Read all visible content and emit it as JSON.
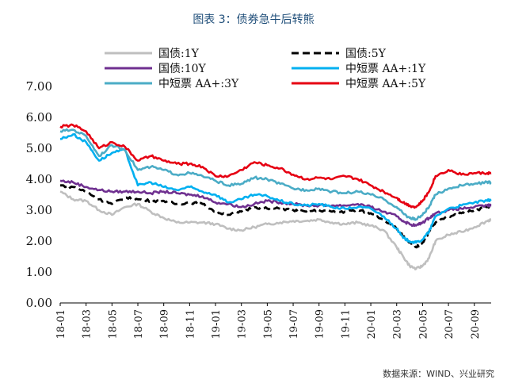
{
  "title": "图表 3：债券急牛后转熊",
  "source": "数据来源：WIND、兴业研究",
  "chart_data": {
    "type": "line",
    "title": "图表 3：债券急牛后转熊",
    "xlabel": "",
    "ylabel": "",
    "ylim": [
      0,
      7
    ],
    "y_ticks": [
      "0.00",
      "1.00",
      "2.00",
      "3.00",
      "4.00",
      "5.00",
      "6.00",
      "7.00"
    ],
    "x_ticks": [
      "18-01",
      "18-03",
      "18-05",
      "18-07",
      "18-09",
      "18-11",
      "19-01",
      "19-03",
      "19-05",
      "19-07",
      "19-09",
      "19-11",
      "20-01",
      "20-03",
      "20-05",
      "20-07",
      "20-09"
    ],
    "x_range": [
      0,
      33.3
    ],
    "grid": false,
    "legend": "top",
    "series": [
      {
        "name": "国债:1Y",
        "color": "#bfbfbf",
        "dash": "solid",
        "x": [
          0,
          1,
          2,
          3,
          4,
          5,
          6,
          7,
          8,
          9,
          10,
          11,
          12,
          13,
          14,
          15,
          16,
          17,
          18,
          19,
          20,
          21,
          22,
          23,
          24,
          25,
          26,
          26.5,
          27,
          27.5,
          28,
          28.5,
          29,
          30,
          31,
          32,
          33,
          33.3
        ],
        "y": [
          3.6,
          3.35,
          3.3,
          3.0,
          2.85,
          3.1,
          3.2,
          2.95,
          2.75,
          2.6,
          2.6,
          2.6,
          2.55,
          2.4,
          2.35,
          2.45,
          2.55,
          2.6,
          2.65,
          2.65,
          2.7,
          2.6,
          2.55,
          2.6,
          2.5,
          2.35,
          1.8,
          1.5,
          1.2,
          1.1,
          1.2,
          1.45,
          2.0,
          2.2,
          2.3,
          2.45,
          2.65,
          2.7
        ]
      },
      {
        "name": "国债:5Y",
        "color": "#000000",
        "dash": "dashed",
        "x": [
          0,
          1,
          2,
          3,
          4,
          5,
          6,
          7,
          8,
          9,
          10,
          11,
          12,
          13,
          14,
          15,
          16,
          17,
          18,
          19,
          20,
          21,
          22,
          23,
          24,
          25,
          26,
          26.5,
          27,
          27.5,
          28,
          28.5,
          29,
          30,
          31,
          32,
          33,
          33.3
        ],
        "y": [
          3.8,
          3.75,
          3.6,
          3.35,
          3.2,
          3.4,
          3.35,
          3.3,
          3.3,
          3.2,
          3.25,
          3.2,
          2.95,
          2.85,
          2.95,
          3.1,
          3.05,
          3.05,
          3.0,
          2.95,
          3.0,
          2.95,
          2.95,
          3.0,
          2.9,
          2.7,
          2.4,
          2.15,
          1.95,
          1.8,
          1.95,
          2.3,
          2.6,
          2.8,
          2.9,
          3.0,
          3.1,
          3.15
        ]
      },
      {
        "name": "国债:10Y",
        "color": "#6f3090",
        "dash": "solid",
        "x": [
          0,
          1,
          2,
          3,
          4,
          5,
          6,
          7,
          8,
          9,
          10,
          11,
          12,
          13,
          14,
          15,
          16,
          17,
          18,
          19,
          20,
          21,
          22,
          23,
          24,
          25,
          26,
          26.5,
          27,
          27.5,
          28,
          28.5,
          29,
          30,
          31,
          32,
          33,
          33.3
        ],
        "y": [
          3.95,
          3.9,
          3.75,
          3.65,
          3.6,
          3.6,
          3.6,
          3.55,
          3.6,
          3.55,
          3.5,
          3.45,
          3.25,
          3.2,
          3.1,
          3.2,
          3.3,
          3.25,
          3.2,
          3.15,
          3.15,
          3.15,
          3.15,
          3.2,
          3.1,
          2.95,
          2.8,
          2.65,
          2.55,
          2.5,
          2.6,
          2.75,
          2.9,
          3.0,
          3.05,
          3.1,
          3.15,
          3.15
        ]
      },
      {
        "name": "中短票 AA+:1Y",
        "color": "#00b0f0",
        "dash": "solid",
        "x": [
          0,
          1,
          2,
          3,
          4,
          5,
          6,
          7,
          8,
          9,
          10,
          11,
          12,
          13,
          14,
          15,
          16,
          17,
          18,
          19,
          20,
          21,
          22,
          23,
          24,
          25,
          26,
          26.5,
          27,
          27.5,
          28,
          28.5,
          29,
          30,
          31,
          32,
          33,
          33.3
        ],
        "y": [
          5.3,
          5.45,
          5.2,
          4.6,
          4.85,
          4.95,
          3.8,
          3.9,
          3.75,
          3.65,
          3.75,
          3.6,
          3.5,
          3.25,
          3.35,
          3.5,
          3.45,
          3.3,
          3.2,
          3.15,
          3.2,
          3.1,
          3.05,
          3.1,
          3.05,
          2.8,
          2.4,
          2.1,
          2.0,
          1.95,
          2.05,
          2.3,
          2.8,
          3.05,
          3.15,
          3.25,
          3.3,
          3.35
        ]
      },
      {
        "name": "中短票 AA+:3Y",
        "color": "#4bacc6",
        "dash": "solid",
        "x": [
          0,
          1,
          2,
          3,
          4,
          5,
          6,
          7,
          8,
          9,
          10,
          11,
          12,
          13,
          14,
          15,
          16,
          17,
          18,
          19,
          20,
          21,
          22,
          23,
          24,
          25,
          26,
          26.5,
          27,
          27.5,
          28,
          28.5,
          29,
          30,
          31,
          32,
          33,
          33.3
        ],
        "y": [
          5.55,
          5.6,
          5.4,
          4.75,
          5.1,
          4.95,
          4.3,
          4.4,
          4.3,
          4.15,
          4.2,
          4.1,
          3.95,
          3.8,
          3.85,
          4.05,
          4.0,
          3.85,
          3.7,
          3.65,
          3.7,
          3.6,
          3.55,
          3.6,
          3.5,
          3.35,
          3.1,
          2.9,
          2.75,
          2.7,
          2.85,
          3.1,
          3.5,
          3.7,
          3.8,
          3.85,
          3.9,
          3.9
        ]
      },
      {
        "name": "中短票 AA+:5Y",
        "color": "#e60012",
        "dash": "solid",
        "x": [
          0,
          1,
          2,
          3,
          4,
          5,
          6,
          7,
          8,
          9,
          10,
          11,
          12,
          13,
          14,
          15,
          16,
          17,
          18,
          19,
          20,
          21,
          22,
          23,
          24,
          25,
          26,
          26.5,
          27,
          27.5,
          28,
          28.5,
          29,
          30,
          31,
          32,
          33,
          33.3
        ],
        "y": [
          5.7,
          5.75,
          5.55,
          5.0,
          5.2,
          5.05,
          4.6,
          4.75,
          4.6,
          4.5,
          4.5,
          4.4,
          4.1,
          4.1,
          4.3,
          4.55,
          4.45,
          4.35,
          4.15,
          4.0,
          4.05,
          4.0,
          4.1,
          4.0,
          3.8,
          3.6,
          3.4,
          3.25,
          3.15,
          3.1,
          3.3,
          3.6,
          4.1,
          4.3,
          4.15,
          4.2,
          4.2,
          4.2
        ]
      }
    ]
  }
}
